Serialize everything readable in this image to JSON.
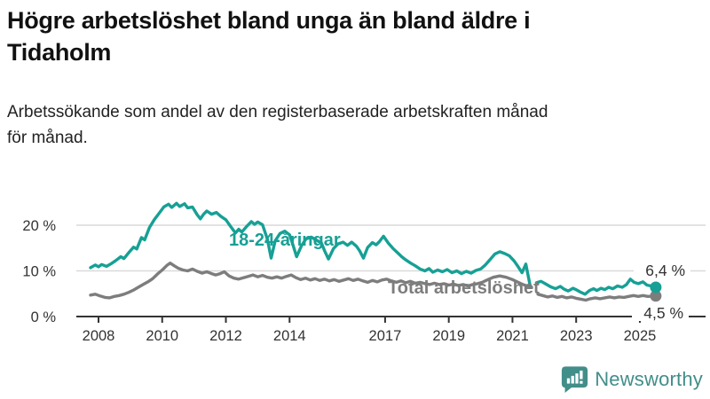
{
  "chart_data": {
    "type": "line",
    "title": "Högre arbetslöshet bland unga än bland äldre i\nTidaholm",
    "subtitle": "Arbetssökande som andel av den registerbaserade arbetskraften månad\nför månad.",
    "x_axis": {
      "ticks": [
        2008,
        2010,
        2012,
        2014,
        2017,
        2019,
        2021,
        2023,
        2025
      ],
      "labels": [
        "2008",
        "2010",
        "2012",
        "2014",
        "2017",
        "2019",
        "2021",
        "2023",
        "2025"
      ],
      "range": [
        2007.6,
        2025.9
      ]
    },
    "y_axis": {
      "ticks": [
        0,
        10,
        20
      ],
      "labels": [
        "0 %",
        "10 %",
        "20 %"
      ],
      "unit": "%",
      "range": [
        0,
        27
      ],
      "grid": true
    },
    "legend_position": "inline-annotations",
    "series": [
      {
        "id": "youth",
        "name": "18-24-åringar",
        "color": "#17a095",
        "end_label": "6,4 %",
        "end_value": 6.4,
        "segments": [
          [
            [
              2007.75,
              10.7
            ],
            [
              2007.9,
              11.3
            ],
            [
              2008.0,
              10.9
            ],
            [
              2008.1,
              11.4
            ],
            [
              2008.25,
              11.0
            ],
            [
              2008.4,
              11.6
            ],
            [
              2008.55,
              12.3
            ],
            [
              2008.7,
              13.1
            ],
            [
              2008.8,
              12.7
            ],
            [
              2008.95,
              14.0
            ],
            [
              2009.1,
              15.2
            ],
            [
              2009.2,
              14.8
            ],
            [
              2009.35,
              17.3
            ],
            [
              2009.45,
              16.8
            ],
            [
              2009.6,
              19.5
            ],
            [
              2009.75,
              21.2
            ],
            [
              2009.9,
              22.6
            ],
            [
              2010.05,
              24.0
            ],
            [
              2010.2,
              24.6
            ],
            [
              2010.3,
              23.9
            ],
            [
              2010.45,
              24.8
            ],
            [
              2010.55,
              24.1
            ],
            [
              2010.7,
              24.7
            ],
            [
              2010.8,
              23.8
            ],
            [
              2010.95,
              24.0
            ],
            [
              2011.1,
              22.3
            ],
            [
              2011.2,
              21.4
            ],
            [
              2011.3,
              22.4
            ],
            [
              2011.4,
              23.1
            ],
            [
              2011.55,
              22.4
            ],
            [
              2011.7,
              22.8
            ],
            [
              2011.85,
              21.9
            ],
            [
              2012.0,
              21.2
            ],
            [
              2012.15,
              19.7
            ],
            [
              2012.3,
              18.3
            ],
            [
              2012.4,
              19.1
            ],
            [
              2012.5,
              18.5
            ],
            [
              2012.65,
              19.7
            ],
            [
              2012.8,
              20.8
            ],
            [
              2012.9,
              20.2
            ],
            [
              2013.0,
              20.7
            ],
            [
              2013.15,
              20.1
            ],
            [
              2013.3,
              17.0
            ],
            [
              2013.42,
              12.8
            ],
            [
              2013.55,
              16.6
            ],
            [
              2013.7,
              18.2
            ],
            [
              2013.85,
              18.7
            ],
            [
              2014.0,
              17.9
            ],
            [
              2014.1,
              15.8
            ],
            [
              2014.22,
              13.1
            ],
            [
              2014.38,
              15.6
            ],
            [
              2014.52,
              17.0
            ],
            [
              2014.68,
              17.4
            ],
            [
              2014.85,
              16.7
            ],
            [
              2015.0,
              16.1
            ],
            [
              2015.1,
              14.4
            ],
            [
              2015.22,
              12.6
            ],
            [
              2015.38,
              14.9
            ],
            [
              2015.52,
              15.9
            ],
            [
              2015.68,
              16.3
            ],
            [
              2015.82,
              15.6
            ],
            [
              2015.95,
              16.3
            ],
            [
              2016.1,
              15.4
            ],
            [
              2016.2,
              14.4
            ],
            [
              2016.32,
              12.8
            ],
            [
              2016.45,
              15.1
            ],
            [
              2016.6,
              16.2
            ],
            [
              2016.72,
              15.7
            ],
            [
              2016.82,
              16.4
            ],
            [
              2016.95,
              17.6
            ],
            [
              2017.1,
              16.1
            ],
            [
              2017.25,
              14.9
            ],
            [
              2017.4,
              13.9
            ],
            [
              2017.52,
              13.1
            ],
            [
              2017.65,
              12.4
            ],
            [
              2017.8,
              11.7
            ],
            [
              2017.95,
              11.1
            ],
            [
              2018.1,
              10.4
            ],
            [
              2018.25,
              10.0
            ],
            [
              2018.38,
              10.5
            ],
            [
              2018.5,
              9.7
            ],
            [
              2018.65,
              10.2
            ],
            [
              2018.8,
              9.8
            ],
            [
              2018.95,
              10.3
            ],
            [
              2019.1,
              9.6
            ],
            [
              2019.25,
              10.0
            ],
            [
              2019.4,
              9.4
            ],
            [
              2019.55,
              9.9
            ],
            [
              2019.7,
              9.5
            ],
            [
              2019.85,
              10.1
            ],
            [
              2020.0,
              10.4
            ],
            [
              2020.15,
              11.3
            ],
            [
              2020.3,
              12.5
            ],
            [
              2020.45,
              13.7
            ],
            [
              2020.6,
              14.2
            ],
            [
              2020.75,
              13.8
            ],
            [
              2020.9,
              13.3
            ],
            [
              2021.05,
              12.2
            ],
            [
              2021.18,
              10.9
            ],
            [
              2021.3,
              9.6
            ],
            [
              2021.42,
              11.5
            ],
            [
              2021.55,
              6.9
            ]
          ],
          [
            [
              2021.75,
              7.4
            ],
            [
              2021.9,
              7.7
            ],
            [
              2022.05,
              7.1
            ],
            [
              2022.2,
              6.5
            ],
            [
              2022.35,
              6.1
            ],
            [
              2022.5,
              6.6
            ],
            [
              2022.62,
              6.0
            ],
            [
              2022.75,
              5.6
            ],
            [
              2022.9,
              6.2
            ],
            [
              2023.02,
              5.8
            ],
            [
              2023.15,
              5.3
            ],
            [
              2023.28,
              4.9
            ],
            [
              2023.42,
              5.7
            ],
            [
              2023.55,
              6.1
            ],
            [
              2023.65,
              5.7
            ],
            [
              2023.78,
              6.2
            ],
            [
              2023.9,
              5.9
            ],
            [
              2024.02,
              6.4
            ],
            [
              2024.15,
              6.1
            ],
            [
              2024.3,
              6.7
            ],
            [
              2024.45,
              6.4
            ],
            [
              2024.58,
              7.0
            ],
            [
              2024.7,
              8.2
            ],
            [
              2024.82,
              7.5
            ],
            [
              2024.95,
              7.2
            ],
            [
              2025.1,
              7.6
            ],
            [
              2025.22,
              6.9
            ],
            [
              2025.35,
              6.7
            ],
            [
              2025.5,
              6.4
            ]
          ]
        ]
      },
      {
        "id": "total",
        "name": "Total arbetslöshet",
        "color": "#7d7d7d",
        "end_label": "4,5 %",
        "end_value": 4.5,
        "segments": [
          [
            [
              2007.75,
              4.7
            ],
            [
              2007.9,
              4.9
            ],
            [
              2008.05,
              4.5
            ],
            [
              2008.2,
              4.2
            ],
            [
              2008.35,
              4.1
            ],
            [
              2008.5,
              4.4
            ],
            [
              2008.65,
              4.6
            ],
            [
              2008.8,
              4.9
            ],
            [
              2008.95,
              5.3
            ],
            [
              2009.1,
              5.8
            ],
            [
              2009.25,
              6.4
            ],
            [
              2009.4,
              7.0
            ],
            [
              2009.55,
              7.6
            ],
            [
              2009.7,
              8.3
            ],
            [
              2009.85,
              9.3
            ],
            [
              2010.0,
              10.2
            ],
            [
              2010.15,
              11.2
            ],
            [
              2010.25,
              11.7
            ],
            [
              2010.38,
              11.1
            ],
            [
              2010.5,
              10.6
            ],
            [
              2010.65,
              10.2
            ],
            [
              2010.8,
              10.0
            ],
            [
              2010.95,
              10.4
            ],
            [
              2011.1,
              9.9
            ],
            [
              2011.25,
              9.5
            ],
            [
              2011.4,
              9.8
            ],
            [
              2011.55,
              9.4
            ],
            [
              2011.68,
              9.1
            ],
            [
              2011.82,
              9.4
            ],
            [
              2011.95,
              9.8
            ],
            [
              2012.1,
              8.9
            ],
            [
              2012.25,
              8.4
            ],
            [
              2012.4,
              8.2
            ],
            [
              2012.55,
              8.5
            ],
            [
              2012.7,
              8.8
            ],
            [
              2012.85,
              9.1
            ],
            [
              2013.0,
              8.7
            ],
            [
              2013.15,
              9.0
            ],
            [
              2013.3,
              8.6
            ],
            [
              2013.45,
              8.4
            ],
            [
              2013.6,
              8.7
            ],
            [
              2013.75,
              8.4
            ],
            [
              2013.9,
              8.8
            ],
            [
              2014.05,
              9.1
            ],
            [
              2014.2,
              8.5
            ],
            [
              2014.35,
              8.1
            ],
            [
              2014.5,
              8.4
            ],
            [
              2014.65,
              8.0
            ],
            [
              2014.8,
              8.3
            ],
            [
              2014.95,
              7.9
            ],
            [
              2015.1,
              8.2
            ],
            [
              2015.25,
              7.8
            ],
            [
              2015.4,
              8.1
            ],
            [
              2015.55,
              7.7
            ],
            [
              2015.7,
              8.0
            ],
            [
              2015.85,
              8.3
            ],
            [
              2016.0,
              7.9
            ],
            [
              2016.15,
              8.2
            ],
            [
              2016.3,
              7.8
            ],
            [
              2016.45,
              7.5
            ],
            [
              2016.6,
              7.9
            ],
            [
              2016.75,
              7.6
            ],
            [
              2016.9,
              8.0
            ],
            [
              2017.05,
              8.2
            ],
            [
              2017.2,
              7.8
            ],
            [
              2017.35,
              7.5
            ],
            [
              2017.5,
              7.8
            ],
            [
              2017.65,
              7.4
            ],
            [
              2017.8,
              7.7
            ],
            [
              2017.95,
              7.3
            ],
            [
              2018.1,
              7.5
            ],
            [
              2018.25,
              7.2
            ],
            [
              2018.4,
              7.0
            ],
            [
              2018.55,
              7.3
            ],
            [
              2018.7,
              7.0
            ],
            [
              2018.85,
              7.2
            ],
            [
              2019.0,
              6.9
            ],
            [
              2019.15,
              7.1
            ],
            [
              2019.3,
              6.8
            ],
            [
              2019.45,
              7.0
            ],
            [
              2019.6,
              6.7
            ],
            [
              2019.75,
              7.0
            ],
            [
              2019.9,
              7.2
            ],
            [
              2020.05,
              7.5
            ],
            [
              2020.2,
              8.0
            ],
            [
              2020.4,
              8.6
            ],
            [
              2020.6,
              8.9
            ],
            [
              2020.8,
              8.6
            ],
            [
              2021.0,
              8.1
            ],
            [
              2021.15,
              7.6
            ],
            [
              2021.3,
              7.1
            ],
            [
              2021.45,
              6.7
            ],
            [
              2021.6,
              6.4
            ]
          ],
          [
            [
              2021.8,
              4.9
            ],
            [
              2021.95,
              4.6
            ],
            [
              2022.1,
              4.3
            ],
            [
              2022.25,
              4.5
            ],
            [
              2022.4,
              4.2
            ],
            [
              2022.55,
              4.4
            ],
            [
              2022.7,
              4.1
            ],
            [
              2022.85,
              4.3
            ],
            [
              2023.0,
              4.0
            ],
            [
              2023.15,
              3.8
            ],
            [
              2023.3,
              3.6
            ],
            [
              2023.45,
              3.9
            ],
            [
              2023.6,
              4.1
            ],
            [
              2023.75,
              3.9
            ],
            [
              2023.9,
              4.1
            ],
            [
              2024.05,
              4.3
            ],
            [
              2024.2,
              4.1
            ],
            [
              2024.35,
              4.3
            ],
            [
              2024.5,
              4.2
            ],
            [
              2024.65,
              4.4
            ],
            [
              2024.8,
              4.6
            ],
            [
              2024.95,
              4.4
            ],
            [
              2025.1,
              4.6
            ],
            [
              2025.25,
              4.4
            ],
            [
              2025.5,
              4.5
            ]
          ]
        ]
      }
    ],
    "colors": {
      "axis": "#333333",
      "grid": "#d9d9d9",
      "accent_teal": "#17a095",
      "series_gray": "#7d7d7d"
    }
  },
  "footer": {
    "brand": "Newsworthy",
    "brand_color": "#428e89",
    "logo_icon": "bar-chart-speech-bubble-icon"
  }
}
